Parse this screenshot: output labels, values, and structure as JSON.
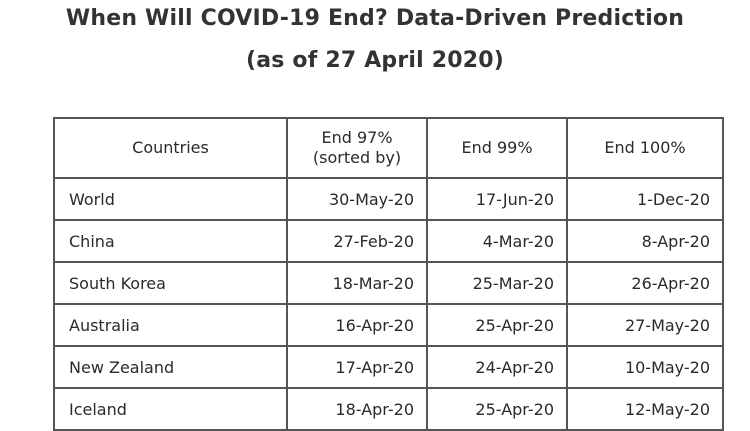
{
  "title_line1": "When Will COVID-19 End? Data-Driven Prediction",
  "title_line2": "(as of 27 April 2020)",
  "table": {
    "headers": [
      {
        "line1": "Countries",
        "line2": ""
      },
      {
        "line1": "End 97%",
        "line2": "(sorted by)"
      },
      {
        "line1": "End 99%",
        "line2": ""
      },
      {
        "line1": "End 100%",
        "line2": ""
      }
    ],
    "rows": [
      {
        "country": "World",
        "end97": "30-May-20",
        "end99": "17-Jun-20",
        "end100": "1-Dec-20"
      },
      {
        "country": "China",
        "end97": "27-Feb-20",
        "end99": "4-Mar-20",
        "end100": "8-Apr-20"
      },
      {
        "country": "South Korea",
        "end97": "18-Mar-20",
        "end99": "25-Mar-20",
        "end100": "26-Apr-20"
      },
      {
        "country": "Australia",
        "end97": "16-Apr-20",
        "end99": "25-Apr-20",
        "end100": "27-May-20"
      },
      {
        "country": "New Zealand",
        "end97": "17-Apr-20",
        "end99": "24-Apr-20",
        "end100": "10-May-20"
      },
      {
        "country": "Iceland",
        "end97": "18-Apr-20",
        "end99": "25-Apr-20",
        "end100": "12-May-20"
      }
    ]
  }
}
